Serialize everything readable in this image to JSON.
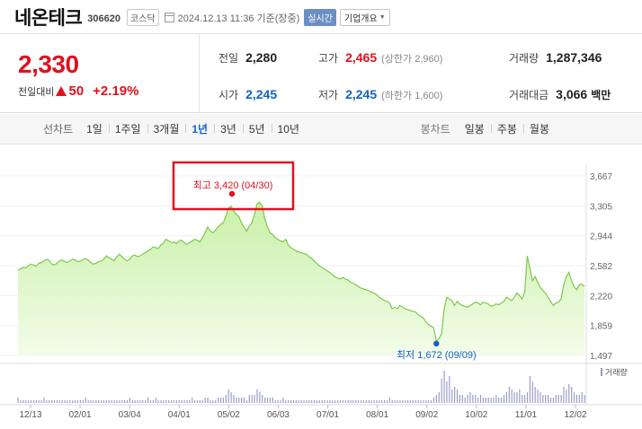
{
  "header": {
    "name": "네온테크",
    "code": "306620",
    "market": "코스닥",
    "timestamp": "2024.12.13 11:36 기준(장중)",
    "realtime_label": "실시간",
    "overview_label": "기업개요"
  },
  "price": {
    "current": "2,330",
    "change_label": "전일대비",
    "change": "50",
    "change_rate": "+2.19%"
  },
  "stats": {
    "prev_close_label": "전일",
    "prev_close": "2,280",
    "high_label": "고가",
    "high": "2,465",
    "upper_limit": "(상한가 2,960)",
    "volume_label": "거래량",
    "volume": "1,287,346",
    "open_label": "시가",
    "open": "2,245",
    "low_label": "저가",
    "low": "2,245",
    "lower_limit": "(하한가 1,600)",
    "value_label": "거래대금",
    "value": "3,066",
    "value_unit": "백만"
  },
  "period_bar": {
    "label": "선차트",
    "items": [
      "1일",
      "1주일",
      "3개월",
      "1년",
      "3년",
      "5년",
      "10년"
    ],
    "active": "1년",
    "candle_label": "봉차트",
    "candle_items": [
      "일봉",
      "주봉",
      "월봉"
    ]
  },
  "colors": {
    "up": "#e2101f",
    "down": "#1262c6",
    "line": "#7dc94a",
    "fill_top": "#c9f0a8",
    "fill_bottom": "#f3fce9",
    "volume": "#9a9ec8",
    "highlight_box": "#e2101f"
  },
  "chart_data": {
    "type": "area",
    "title": "",
    "xlabel": "",
    "ylabel": "",
    "ylim": [
      1497,
      3667
    ],
    "y_ticks": [
      "3,667",
      "3,305",
      "2,944",
      "2,582",
      "2,220",
      "1,859",
      "1,497"
    ],
    "x_ticks": [
      "12/13",
      "02/01",
      "03/04",
      "04/01",
      "05/02",
      "06/03",
      "07/01",
      "08/01",
      "09/02",
      "10/02",
      "11/01",
      "12/02"
    ],
    "high_annotation": "최고 3,420 (04/30)",
    "low_annotation": "최저 1,672 (09/09)",
    "volume_legend": "거래량",
    "series": [
      {
        "values": [
          2530,
          2545,
          2560,
          2555,
          2580,
          2600,
          2590,
          2575,
          2610,
          2620,
          2640,
          2660,
          2645,
          2600,
          2590,
          2610,
          2640,
          2650,
          2630,
          2620,
          2640,
          2660,
          2650,
          2630,
          2640,
          2655,
          2670,
          2650,
          2620,
          2600,
          2610,
          2630,
          2640,
          2660,
          2700,
          2680,
          2660,
          2640,
          2690,
          2720,
          2690,
          2660,
          2640,
          2660,
          2700,
          2710,
          2690,
          2700,
          2720,
          2740,
          2760,
          2780,
          2810,
          2800,
          2790,
          2830,
          2860,
          2900,
          2880,
          2860,
          2870,
          2850,
          2880,
          2890,
          2860,
          2840,
          2860,
          2880,
          2900,
          2890,
          2870,
          2920,
          2980,
          3050,
          3000,
          2980,
          3010,
          3050,
          3080,
          3100,
          3180,
          3280,
          3300,
          3250,
          3200,
          3180,
          3100,
          3050,
          3000,
          3060,
          3100,
          3200,
          3330,
          3350,
          3300,
          3150,
          3050,
          2980,
          2960,
          2920,
          2900,
          2880,
          2870,
          2900,
          2830,
          2800,
          2780,
          2760,
          2750,
          2740,
          2730,
          2720,
          2690,
          2670,
          2640,
          2610,
          2580,
          2560,
          2540,
          2520,
          2500,
          2470,
          2450,
          2430,
          2420,
          2440,
          2420,
          2410,
          2380,
          2370,
          2350,
          2330,
          2310,
          2300,
          2290,
          2280,
          2260,
          2250,
          2230,
          2200,
          2180,
          2160,
          2150,
          2130,
          2060,
          2080,
          2060,
          2100,
          2080,
          2060,
          2050,
          2040,
          2030,
          2020,
          1990,
          1970,
          1950,
          1900,
          1870,
          1850,
          1830,
          1672,
          1700,
          1760,
          2050,
          2200,
          2180,
          2160,
          2100,
          2150,
          2120,
          2100,
          2090,
          2080,
          2100,
          2120,
          2140,
          2130,
          2110,
          2140,
          2130,
          2120,
          2090,
          2100,
          2120,
          2110,
          2130,
          2150,
          2200,
          2180,
          2160,
          2200,
          2250,
          2220,
          2180,
          2260,
          2700,
          2550,
          2400,
          2450,
          2380,
          2320,
          2280,
          2250,
          2200,
          2150,
          2100,
          2130,
          2140,
          2180,
          2350,
          2450,
          2500,
          2400,
          2330,
          2290,
          2350,
          2360,
          2330
        ],
        "volume": [
          2,
          1,
          1,
          1,
          1,
          1,
          1,
          1,
          1,
          1,
          2,
          1,
          1,
          1,
          1,
          1,
          1,
          1,
          1,
          1,
          1,
          1,
          1,
          1,
          1,
          1,
          2,
          1,
          1,
          1,
          1,
          1,
          1,
          1,
          1,
          1,
          1,
          1,
          1,
          1,
          1,
          1,
          1,
          2,
          1,
          1,
          1,
          1,
          1,
          1,
          2,
          1,
          1,
          2,
          1,
          1,
          1,
          1,
          1,
          1,
          1,
          1,
          1,
          1,
          1,
          1,
          1,
          2,
          1,
          1,
          1,
          1,
          2,
          2,
          1,
          1,
          1,
          2,
          2,
          2,
          3,
          5,
          4,
          3,
          2,
          2,
          2,
          2,
          1,
          3,
          3,
          3,
          5,
          4,
          3,
          2,
          2,
          2,
          2,
          1,
          1,
          1,
          2,
          1,
          1,
          1,
          1,
          1,
          1,
          1,
          1,
          1,
          1,
          1,
          1,
          1,
          1,
          1,
          1,
          1,
          1,
          1,
          1,
          1,
          1,
          1,
          1,
          1,
          1,
          1,
          1,
          1,
          1,
          1,
          1,
          1,
          1,
          1,
          1,
          1,
          1,
          1,
          1,
          2,
          1,
          1,
          1,
          1,
          1,
          1,
          1,
          1,
          1,
          1,
          1,
          1,
          1,
          1,
          1,
          1,
          2,
          3,
          4,
          9,
          12,
          8,
          10,
          5,
          6,
          5,
          3,
          3,
          2,
          3,
          4,
          3,
          3,
          2,
          3,
          2,
          2,
          2,
          2,
          2,
          3,
          2,
          2,
          3,
          4,
          6,
          5,
          4,
          4,
          5,
          3,
          3,
          4,
          10,
          8,
          6,
          5,
          4,
          3,
          3,
          3,
          2,
          2,
          3,
          3,
          3,
          6,
          5,
          7,
          6,
          4,
          3,
          3,
          4,
          3
        ]
      }
    ]
  }
}
